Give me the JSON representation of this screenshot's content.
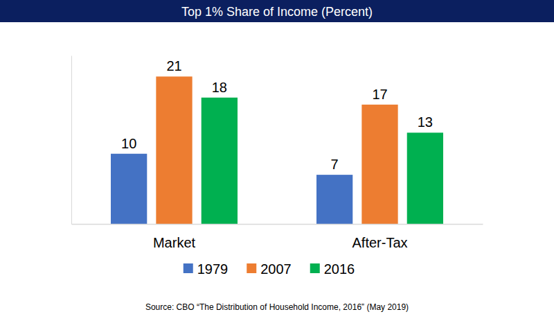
{
  "chart_data": {
    "type": "bar",
    "title": "Top 1% Share of Income (Percent)",
    "categories": [
      "Market",
      "After-Tax"
    ],
    "series": [
      {
        "name": "1979",
        "color": "#4472c4",
        "values": [
          10,
          7
        ]
      },
      {
        "name": "2007",
        "color": "#ed7d31",
        "values": [
          21,
          17
        ]
      },
      {
        "name": "2016",
        "color": "#00b050",
        "values": [
          18,
          13
        ]
      }
    ],
    "ylim": [
      0,
      24
    ],
    "tick_labels": "x",
    "data_labels": true,
    "legend": "bottom",
    "source": "Source:  CBO “The Distribution of Household Income, 2016” (May 2019)"
  }
}
